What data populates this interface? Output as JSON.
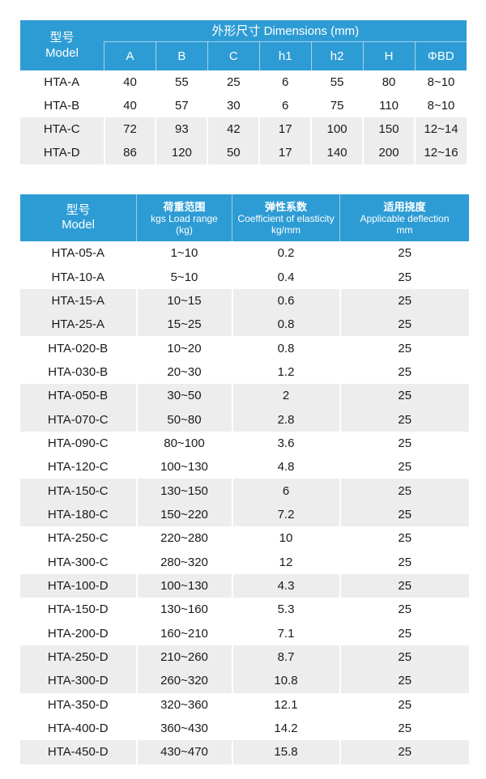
{
  "colors": {
    "header_blue": "#2e9cd4",
    "row_shade": "#ededed",
    "header_text": "#ffffff",
    "body_text": "#1a1a1a"
  },
  "dimensions_table": {
    "model_header": {
      "zh": "型号",
      "en": "Model"
    },
    "group_header": "外形尺寸 Dimensions (mm)",
    "columns": [
      "A",
      "B",
      "C",
      "h1",
      "h2",
      "H",
      "ΦBD"
    ],
    "rows": [
      {
        "model": "HTA-A",
        "values": [
          "40",
          "55",
          "25",
          "6",
          "55",
          "80",
          "8~10"
        ],
        "shaded": false
      },
      {
        "model": "HTA-B",
        "values": [
          "40",
          "57",
          "30",
          "6",
          "75",
          "110",
          "8~10"
        ],
        "shaded": false
      },
      {
        "model": "HTA-C",
        "values": [
          "72",
          "93",
          "42",
          "17",
          "100",
          "150",
          "12~14"
        ],
        "shaded": true
      },
      {
        "model": "HTA-D",
        "values": [
          "86",
          "120",
          "50",
          "17",
          "140",
          "200",
          "12~16"
        ],
        "shaded": true
      }
    ]
  },
  "load_table": {
    "headers": {
      "model": {
        "zh": "型号",
        "en": "Model"
      },
      "load": {
        "zh": "荷重范围",
        "en": "kgs Load range",
        "unit": "(kg)"
      },
      "coefficient": {
        "zh": "弹性系数",
        "en": "Coefficient of elasticity",
        "unit": "kg/mm"
      },
      "deflection": {
        "zh": "适用挠度",
        "en": "Applicable deflection",
        "unit": "mm"
      }
    },
    "rows": [
      {
        "model": "HTA-05-A",
        "load": "1~10",
        "coefficient": "0.2",
        "deflection": "25",
        "shaded": false
      },
      {
        "model": "HTA-10-A",
        "load": "5~10",
        "coefficient": "0.4",
        "deflection": "25",
        "shaded": false
      },
      {
        "model": "HTA-15-A",
        "load": "10~15",
        "coefficient": "0.6",
        "deflection": "25",
        "shaded": true
      },
      {
        "model": "HTA-25-A",
        "load": "15~25",
        "coefficient": "0.8",
        "deflection": "25",
        "shaded": true
      },
      {
        "model": "HTA-020-B",
        "load": "10~20",
        "coefficient": "0.8",
        "deflection": "25",
        "shaded": false
      },
      {
        "model": "HTA-030-B",
        "load": "20~30",
        "coefficient": "1.2",
        "deflection": "25",
        "shaded": false
      },
      {
        "model": "HTA-050-B",
        "load": "30~50",
        "coefficient": "2",
        "deflection": "25",
        "shaded": true
      },
      {
        "model": "HTA-070-C",
        "load": "50~80",
        "coefficient": "2.8",
        "deflection": "25",
        "shaded": true
      },
      {
        "model": "HTA-090-C",
        "load": "80~100",
        "coefficient": "3.6",
        "deflection": "25",
        "shaded": false
      },
      {
        "model": "HTA-120-C",
        "load": "100~130",
        "coefficient": "4.8",
        "deflection": "25",
        "shaded": false
      },
      {
        "model": "HTA-150-C",
        "load": "130~150",
        "coefficient": "6",
        "deflection": "25",
        "shaded": true
      },
      {
        "model": "HTA-180-C",
        "load": "150~220",
        "coefficient": "7.2",
        "deflection": "25",
        "shaded": true
      },
      {
        "model": "HTA-250-C",
        "load": "220~280",
        "coefficient": "10",
        "deflection": "25",
        "shaded": false
      },
      {
        "model": "HTA-300-C",
        "load": "280~320",
        "coefficient": "12",
        "deflection": "25",
        "shaded": false
      },
      {
        "model": "HTA-100-D",
        "load": "100~130",
        "coefficient": "4.3",
        "deflection": "25",
        "shaded": true
      },
      {
        "model": "HTA-150-D",
        "load": "130~160",
        "coefficient": "5.3",
        "deflection": "25",
        "shaded": false
      },
      {
        "model": "HTA-200-D",
        "load": "160~210",
        "coefficient": "7.1",
        "deflection": "25",
        "shaded": false
      },
      {
        "model": "HTA-250-D",
        "load": "210~260",
        "coefficient": "8.7",
        "deflection": "25",
        "shaded": true
      },
      {
        "model": "HTA-300-D",
        "load": "260~320",
        "coefficient": "10.8",
        "deflection": "25",
        "shaded": true
      },
      {
        "model": "HTA-350-D",
        "load": "320~360",
        "coefficient": "12.1",
        "deflection": "25",
        "shaded": false
      },
      {
        "model": "HTA-400-D",
        "load": "360~430",
        "coefficient": "14.2",
        "deflection": "25",
        "shaded": false
      },
      {
        "model": "HTA-450-D",
        "load": "430~470",
        "coefficient": "15.8",
        "deflection": "25",
        "shaded": true
      }
    ]
  }
}
